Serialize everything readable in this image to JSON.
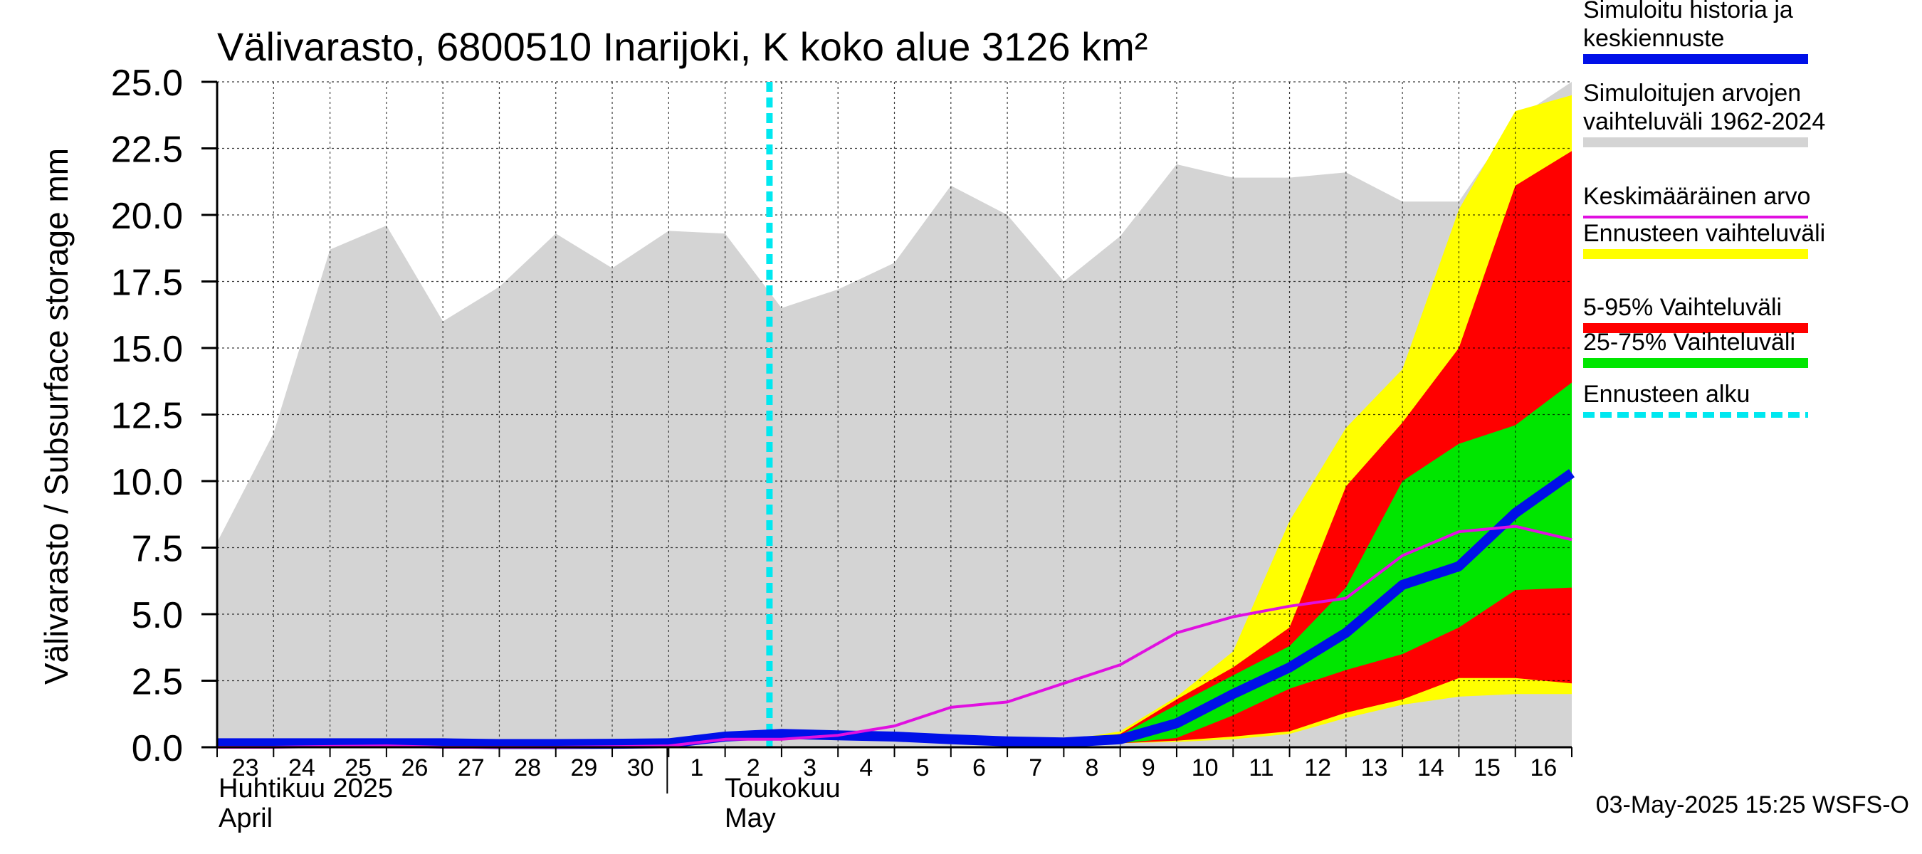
{
  "chart_data": {
    "type": "area",
    "title": "Välivarasto, 6800510 Inarijoki, K koko alue 3126 km²",
    "ylabel": "Välivarasto / Subsurface storage  mm",
    "ylim": [
      0,
      25
    ],
    "yticks": [
      "0.0",
      "2.5",
      "5.0",
      "7.5",
      "10.0",
      "12.5",
      "15.0",
      "17.5",
      "20.0",
      "22.5",
      "25.0"
    ],
    "x_dates": [
      "2025-04-23",
      "2025-04-24",
      "2025-04-25",
      "2025-04-26",
      "2025-04-27",
      "2025-04-28",
      "2025-04-29",
      "2025-04-30",
      "2025-05-01",
      "2025-05-02",
      "2025-05-03",
      "2025-05-04",
      "2025-05-05",
      "2025-05-06",
      "2025-05-07",
      "2025-05-08",
      "2025-05-09",
      "2025-05-10",
      "2025-05-11",
      "2025-05-12",
      "2025-05-13",
      "2025-05-14",
      "2025-05-15",
      "2025-05-16",
      "2025-05-17"
    ],
    "xtick_labels": [
      "23",
      "24",
      "25",
      "26",
      "27",
      "28",
      "29",
      "30",
      "1",
      "2",
      "3",
      "4",
      "5",
      "6",
      "7",
      "8",
      "9",
      "10",
      "11",
      "12",
      "13",
      "14",
      "15",
      "16"
    ],
    "month_labels": {
      "april_fi": "Huhtikuu  2025",
      "april_en": "April",
      "may_fi": "Toukokuu",
      "may_en": "May"
    },
    "forecast_start": "2025-05-03",
    "historical_range": {
      "name": "Simuloitujen arvojen vaihteluväli 1962-2024",
      "upper": [
        7.7,
        11.8,
        18.7,
        19.6,
        16.0,
        17.3,
        19.3,
        18.0,
        19.4,
        19.3,
        16.5,
        17.2,
        18.2,
        21.1,
        20.0,
        17.5,
        19.2,
        21.9,
        21.4,
        21.4,
        21.6,
        20.5,
        20.5,
        23.6,
        25.0
      ],
      "lower": [
        0,
        0,
        0,
        0,
        0,
        0,
        0,
        0,
        0,
        0,
        0,
        0,
        0,
        0,
        0,
        0,
        0,
        0,
        0,
        0,
        0,
        0,
        0,
        0,
        0
      ]
    },
    "forecast_x_dates": [
      "2025-05-08",
      "2025-05-09",
      "2025-05-10",
      "2025-05-11",
      "2025-05-12",
      "2025-05-13",
      "2025-05-14",
      "2025-05-15",
      "2025-05-16",
      "2025-05-17"
    ],
    "forecast_range": {
      "name": "Ennusteen vaihteluväli",
      "upper": [
        0.25,
        0.6,
        1.9,
        3.6,
        8.5,
        12.0,
        14.2,
        20.2,
        23.9,
        24.5
      ],
      "lower": [
        0.1,
        0.15,
        0.2,
        0.3,
        0.5,
        1.1,
        1.6,
        1.9,
        2.0,
        2.0
      ]
    },
    "p5_95": {
      "name": "5-95% Vaihteluväli",
      "upper": [
        0.2,
        0.5,
        1.8,
        3.0,
        4.5,
        9.8,
        12.2,
        15.0,
        21.1,
        22.4
      ],
      "lower": [
        0.1,
        0.15,
        0.25,
        0.4,
        0.6,
        1.3,
        1.8,
        2.6,
        2.6,
        2.4
      ]
    },
    "p25_75": {
      "name": "25-75% Vaihteluväli",
      "upper": [
        0.2,
        0.45,
        1.6,
        2.7,
        3.8,
        6.0,
        10.0,
        11.4,
        12.1,
        13.7
      ],
      "lower": [
        0.1,
        0.15,
        0.35,
        1.2,
        2.2,
        2.9,
        3.5,
        4.5,
        5.9,
        6.0
      ]
    },
    "series": [
      {
        "name": "Simuloitu historia ja keskiennuste",
        "color": "#0010e8",
        "values": [
          0.15,
          0.15,
          0.15,
          0.15,
          0.15,
          0.12,
          0.12,
          0.13,
          0.15,
          0.4,
          0.5,
          0.45,
          0.4,
          0.3,
          0.22,
          0.18,
          0.3,
          0.9,
          2.0,
          3.0,
          4.3,
          6.1,
          6.8,
          8.8,
          10.3
        ]
      },
      {
        "name": "Keskimääräinen arvo",
        "color": "#e010e0",
        "values": [
          0.0,
          0.0,
          0.03,
          0.05,
          0.0,
          0.0,
          0.0,
          0.02,
          0.05,
          0.3,
          0.3,
          0.45,
          0.8,
          1.5,
          1.7,
          2.4,
          3.1,
          4.3,
          4.9,
          5.3,
          5.6,
          7.2,
          8.1,
          8.3,
          7.8
        ]
      }
    ],
    "legend": [
      {
        "label": "Simuloitu historia ja keskiennuste",
        "color": "#0010e8",
        "style": "thick"
      },
      {
        "label": "Simuloitujen arvojen vaihteluväli 1962-2024",
        "color": "#d4d4d4",
        "style": "thick"
      },
      {
        "label": "Keskimääräinen arvo",
        "color": "#e010e0",
        "style": "thin"
      },
      {
        "label": "Ennusteen vaihteluväli",
        "color": "#ffff00",
        "style": "thick"
      },
      {
        "label": "5-95% Vaihteluväli",
        "color": "#ff0000",
        "style": "thick"
      },
      {
        "label": "25-75% Vaihteluväli",
        "color": "#00e600",
        "style": "thick"
      },
      {
        "label": "Ennusteen alku",
        "color": "#00e8f0",
        "style": "dashed"
      }
    ],
    "legend_position": "right",
    "grid": true,
    "timestamp": "03-May-2025 15:25 WSFS-O"
  }
}
